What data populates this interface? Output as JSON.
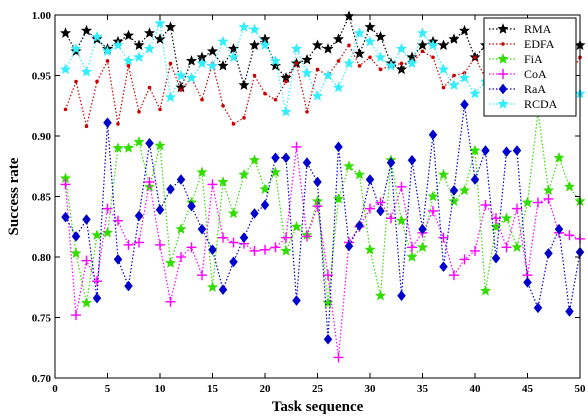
{
  "chart_data": {
    "type": "line",
    "xlabel": "Task sequence",
    "ylabel": "Success rate",
    "xlim": [
      0,
      50
    ],
    "ylim": [
      0.7,
      1.0
    ],
    "x_ticks": [
      "0",
      "5",
      "10",
      "15",
      "20",
      "25",
      "30",
      "35",
      "40",
      "45",
      "50"
    ],
    "y_ticks": [
      "0.70",
      "0.75",
      "0.80",
      "0.85",
      "0.90",
      "0.95",
      "1.00"
    ],
    "legend_position": "top-right",
    "grid": false,
    "x": [
      1,
      2,
      3,
      4,
      5,
      6,
      7,
      8,
      9,
      10,
      11,
      12,
      13,
      14,
      15,
      16,
      17,
      18,
      19,
      20,
      21,
      22,
      23,
      24,
      25,
      26,
      27,
      28,
      29,
      30,
      31,
      32,
      33,
      34,
      35,
      36,
      37,
      38,
      39,
      40,
      41,
      42,
      43,
      44,
      45,
      46,
      47,
      48,
      49,
      50
    ],
    "series": [
      {
        "name": "RMA",
        "color": "#000000",
        "marker": "star",
        "values": [
          0.985,
          0.97,
          0.987,
          0.98,
          0.972,
          0.978,
          0.983,
          0.975,
          0.985,
          0.98,
          0.99,
          0.94,
          0.962,
          0.965,
          0.97,
          0.958,
          0.972,
          0.942,
          0.975,
          0.98,
          0.958,
          0.948,
          0.96,
          0.963,
          0.975,
          0.972,
          0.98,
          0.999,
          0.968,
          0.99,
          0.982,
          0.96,
          0.955,
          0.965,
          0.975,
          0.978,
          0.975,
          0.98,
          0.987,
          0.965,
          0.975,
          0.97,
          0.972,
          0.968,
          0.98,
          0.975,
          0.98,
          0.963,
          0.972,
          0.975
        ]
      },
      {
        "name": "EDFA",
        "color": "#cc0000",
        "marker": "dot",
        "values": [
          0.922,
          0.945,
          0.908,
          0.945,
          0.962,
          0.91,
          0.958,
          0.92,
          0.94,
          0.922,
          0.96,
          0.938,
          0.948,
          0.93,
          0.96,
          0.925,
          0.91,
          0.915,
          0.95,
          0.935,
          0.93,
          0.945,
          0.96,
          0.92,
          0.955,
          0.95,
          0.962,
          0.975,
          0.958,
          0.965,
          0.955,
          0.958,
          0.96,
          0.96,
          0.97,
          0.965,
          0.94,
          0.95,
          0.952,
          0.965,
          0.948,
          0.955,
          0.93,
          0.96,
          0.945,
          0.968,
          0.975,
          0.958,
          0.95,
          0.965
        ]
      },
      {
        "name": "FiA",
        "color": "#33dd00",
        "marker": "star",
        "values": [
          0.865,
          0.803,
          0.762,
          0.818,
          0.82,
          0.89,
          0.89,
          0.895,
          0.858,
          0.892,
          0.795,
          0.823,
          0.845,
          0.87,
          0.775,
          0.862,
          0.836,
          0.868,
          0.88,
          0.856,
          0.87,
          0.805,
          0.825,
          0.818,
          0.846,
          0.762,
          0.848,
          0.875,
          0.868,
          0.806,
          0.768,
          0.88,
          0.83,
          0.8,
          0.808,
          0.85,
          0.868,
          0.846,
          0.855,
          0.888,
          0.772,
          0.825,
          0.832,
          0.808,
          0.845,
          0.92,
          0.855,
          0.882,
          0.858,
          0.846
        ]
      },
      {
        "name": "CoA",
        "color": "#ff00ff",
        "marker": "plus",
        "values": [
          0.86,
          0.752,
          0.797,
          0.78,
          0.84,
          0.83,
          0.81,
          0.812,
          0.862,
          0.81,
          0.763,
          0.8,
          0.808,
          0.785,
          0.86,
          0.816,
          0.812,
          0.811,
          0.805,
          0.806,
          0.808,
          0.816,
          0.891,
          0.817,
          0.842,
          0.785,
          0.717,
          0.812,
          0.825,
          0.84,
          0.845,
          0.832,
          0.858,
          0.808,
          0.82,
          0.838,
          0.816,
          0.785,
          0.798,
          0.805,
          0.843,
          0.832,
          0.808,
          0.84,
          0.785,
          0.845,
          0.848,
          0.82,
          0.818,
          0.815
        ]
      },
      {
        "name": "RaA",
        "color": "#0000cc",
        "marker": "diamond",
        "values": [
          0.833,
          0.817,
          0.831,
          0.766,
          0.911,
          0.798,
          0.776,
          0.834,
          0.894,
          0.839,
          0.856,
          0.864,
          0.842,
          0.823,
          0.806,
          0.773,
          0.796,
          0.816,
          0.836,
          0.843,
          0.882,
          0.882,
          0.764,
          0.878,
          0.862,
          0.732,
          0.891,
          0.809,
          0.826,
          0.864,
          0.838,
          0.878,
          0.768,
          0.88,
          0.823,
          0.901,
          0.792,
          0.855,
          0.926,
          0.864,
          0.888,
          0.799,
          0.887,
          0.888,
          0.779,
          0.758,
          0.803,
          0.823,
          0.755,
          0.804
        ]
      },
      {
        "name": "RCDA",
        "color": "#33eeff",
        "marker": "star",
        "values": [
          0.955,
          0.972,
          0.953,
          0.982,
          0.97,
          0.975,
          0.962,
          0.965,
          0.972,
          0.993,
          0.932,
          0.95,
          0.948,
          0.96,
          0.958,
          0.978,
          0.965,
          0.99,
          0.988,
          0.975,
          0.962,
          0.92,
          0.972,
          0.952,
          0.933,
          0.95,
          0.94,
          0.96,
          0.985,
          0.978,
          0.965,
          0.958,
          0.972,
          0.96,
          0.985,
          0.975,
          0.955,
          0.942,
          0.948,
          0.935,
          0.945,
          0.955,
          0.96,
          0.95,
          0.95,
          0.942,
          0.938,
          0.948,
          0.94,
          0.935
        ]
      }
    ]
  }
}
